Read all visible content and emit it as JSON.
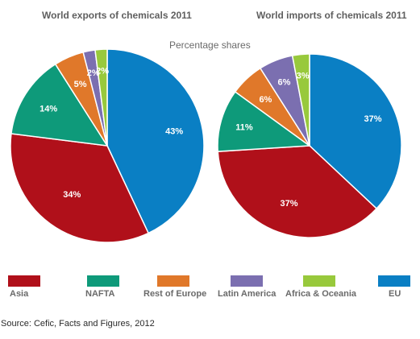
{
  "chart_data": [
    {
      "type": "pie",
      "title": "World exports of chemicals 2011",
      "slices": [
        {
          "name": "EU",
          "value": 43,
          "label": "43%"
        },
        {
          "name": "Asia",
          "value": 34,
          "label": "34%"
        },
        {
          "name": "NAFTA",
          "value": 14,
          "label": "14%"
        },
        {
          "name": "Rest of Europe",
          "value": 5,
          "label": "5%"
        },
        {
          "name": "Latin America",
          "value": 2,
          "label": "2%"
        },
        {
          "name": "Africa & Oceania",
          "value": 2,
          "label": "2%"
        }
      ]
    },
    {
      "type": "pie",
      "title": "World imports of chemicals 2011",
      "slices": [
        {
          "name": "EU",
          "value": 37,
          "label": "37%"
        },
        {
          "name": "Asia",
          "value": 37,
          "label": "37%"
        },
        {
          "name": "NAFTA",
          "value": 11,
          "label": "11%"
        },
        {
          "name": "Rest of Europe",
          "value": 6,
          "label": "6%"
        },
        {
          "name": "Latin America",
          "value": 6,
          "label": "6%"
        },
        {
          "name": "Africa & Oceania",
          "value": 3,
          "label": "3%"
        }
      ]
    }
  ],
  "subtitle": "Percentage shares",
  "legend": [
    {
      "name": "Asia",
      "color": "#b0101a"
    },
    {
      "name": "NAFTA",
      "color": "#0e9a7a"
    },
    {
      "name": "Rest of Europe",
      "color": "#e0782a"
    },
    {
      "name": "Latin America",
      "color": "#7b6fb0"
    },
    {
      "name": "Africa & Oceania",
      "color": "#98c93c"
    },
    {
      "name": "EU",
      "color": "#0a7fc4"
    }
  ],
  "source": "Source: Cefic, Facts and Figures, 2012"
}
